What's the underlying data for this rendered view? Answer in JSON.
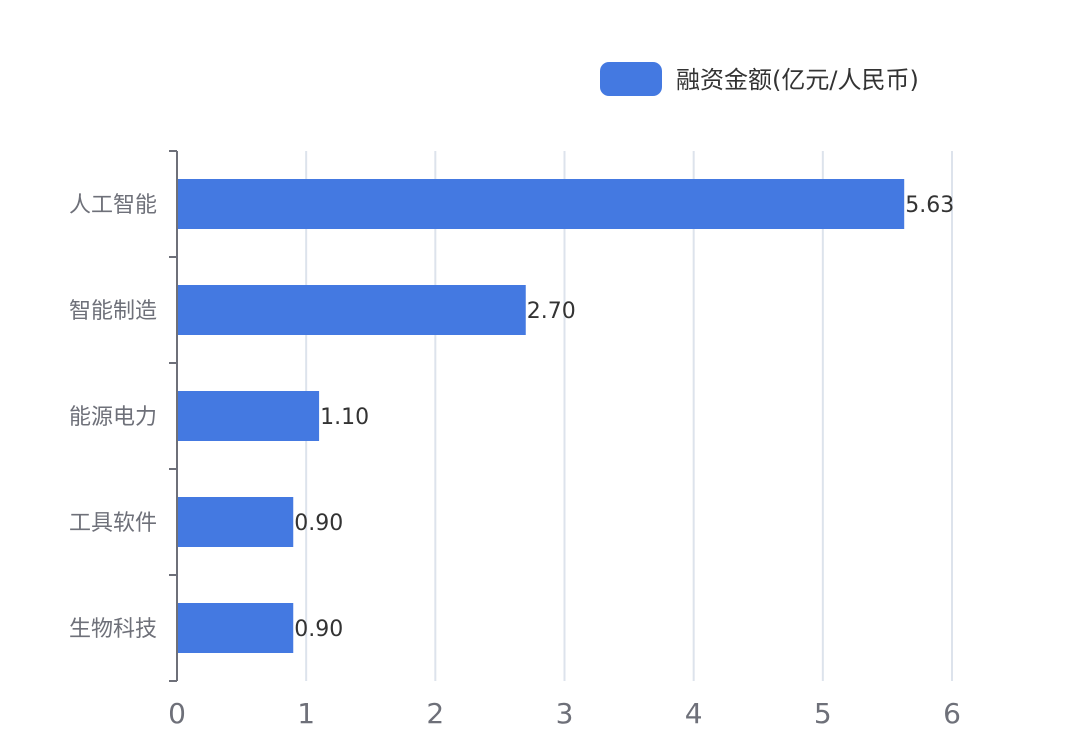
{
  "chart_data": {
    "type": "bar",
    "orientation": "horizontal",
    "categories": [
      "人工智能",
      "智能制造",
      "能源电力",
      "工具软件",
      "生物科技"
    ],
    "series": [
      {
        "name": "融资金额(亿元/人民币)",
        "values": [
          5.63,
          2.7,
          1.1,
          0.9,
          0.9
        ],
        "labels": [
          "5.63",
          "2.70",
          "1.10",
          "0.90",
          "0.90"
        ]
      }
    ],
    "xlim": [
      0,
      6
    ],
    "x_ticks": [
      "0",
      "1",
      "2",
      "3",
      "4",
      "5",
      "6"
    ],
    "grid": true,
    "legend_position": "top-right",
    "colors": {
      "bar": "#4479e1",
      "grid": "#dde3ec",
      "axis": "#6e7079"
    }
  }
}
